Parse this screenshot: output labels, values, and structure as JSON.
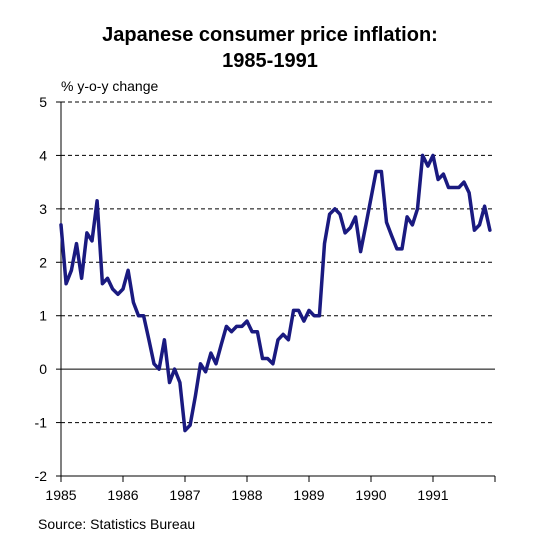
{
  "title_line1": "Japanese consumer price inflation:",
  "title_line2": "1985-1991",
  "source": "Source: Statistics Bureau",
  "chart_data": {
    "type": "line",
    "title": "Japanese consumer price inflation: 1985-1991",
    "ylabel": "% y-o-y change",
    "xlabel": "",
    "ylim": [
      -2,
      5
    ],
    "yticks": [
      "-2",
      "-1",
      "0",
      "1",
      "2",
      "3",
      "4",
      "5"
    ],
    "xlim": [
      1985,
      1992
    ],
    "xticks": [
      "1985",
      "1986",
      "1987",
      "1988",
      "1989",
      "1990",
      "1991"
    ],
    "grid": "dashed horizontal",
    "line_color": "#1a1a80",
    "series": [
      {
        "x": [
          1985.0,
          1985.083,
          1985.167,
          1985.25,
          1985.333,
          1985.417,
          1985.5,
          1985.583,
          1985.667,
          1985.75,
          1985.833,
          1985.917,
          1986.0,
          1986.083,
          1986.167,
          1986.25,
          1986.333,
          1986.417,
          1986.5,
          1986.583,
          1986.667,
          1986.75,
          1986.833,
          1986.917,
          1987.0,
          1987.083,
          1987.167,
          1987.25,
          1987.333,
          1987.417,
          1987.5,
          1987.583,
          1987.667,
          1987.75,
          1987.833,
          1987.917,
          1988.0,
          1988.083,
          1988.167,
          1988.25,
          1988.333,
          1988.417,
          1988.5,
          1988.583,
          1988.667,
          1988.75,
          1988.833,
          1988.917,
          1989.0,
          1989.083,
          1989.167,
          1989.25,
          1989.333,
          1989.417,
          1989.5,
          1989.583,
          1989.667,
          1989.75,
          1989.833,
          1989.917,
          1990.0,
          1990.083,
          1990.167,
          1990.25,
          1990.333,
          1990.417,
          1990.5,
          1990.583,
          1990.667,
          1990.75,
          1990.833,
          1990.917,
          1991.0,
          1991.083,
          1991.167,
          1991.25,
          1991.333,
          1991.417,
          1991.5,
          1991.583,
          1991.667,
          1991.75,
          1991.833,
          1991.917
        ],
        "y": [
          2.7,
          1.6,
          1.85,
          2.35,
          1.7,
          2.55,
          2.4,
          3.15,
          1.6,
          1.7,
          1.5,
          1.4,
          1.5,
          1.85,
          1.25,
          1.0,
          1.0,
          0.55,
          0.1,
          0.0,
          0.55,
          -0.25,
          0.0,
          -0.25,
          -1.15,
          -1.05,
          -0.5,
          0.1,
          -0.05,
          0.3,
          0.1,
          0.45,
          0.8,
          0.7,
          0.8,
          0.8,
          0.9,
          0.7,
          0.7,
          0.2,
          0.2,
          0.1,
          0.55,
          0.65,
          0.55,
          1.1,
          1.1,
          0.9,
          1.1,
          1.0,
          1.0,
          2.35,
          2.9,
          3.0,
          2.9,
          2.55,
          2.65,
          2.85,
          2.2,
          2.7,
          3.2,
          3.7,
          3.7,
          2.75,
          2.5,
          2.25,
          2.25,
          2.85,
          2.7,
          3.0,
          4.0,
          3.8,
          4.0,
          3.55,
          3.65,
          3.4,
          3.4,
          3.4,
          3.5,
          3.3,
          2.6,
          2.7,
          3.05,
          2.6
        ]
      }
    ]
  }
}
